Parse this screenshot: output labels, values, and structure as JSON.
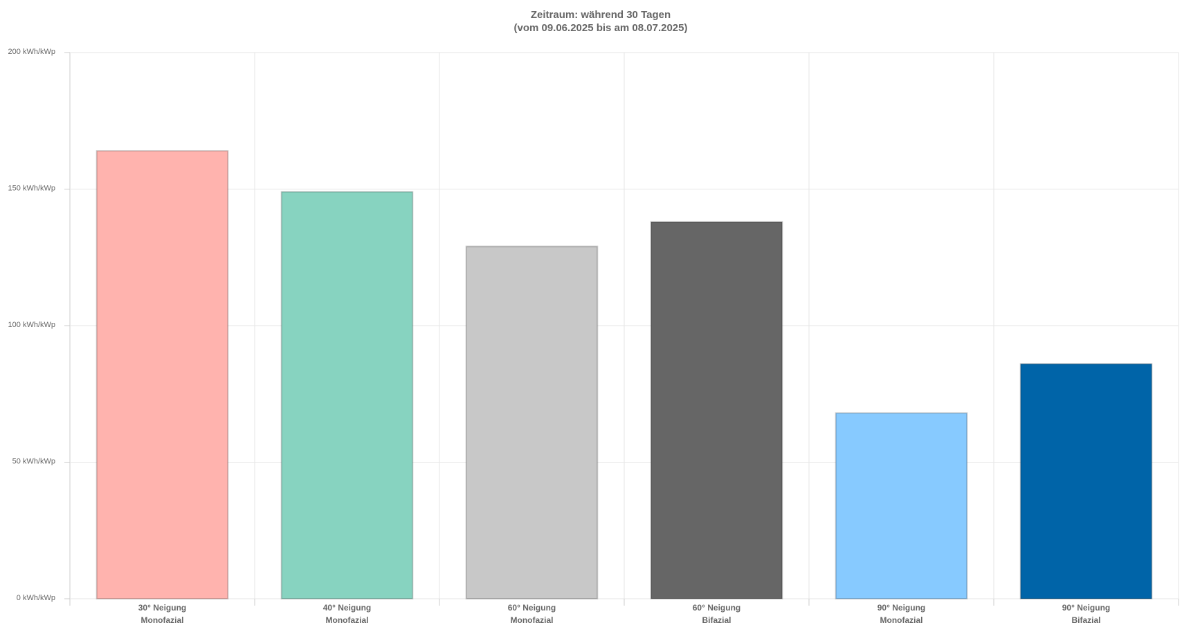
{
  "chart_data": {
    "type": "bar",
    "title": "Zeitraum: während 30 Tagen",
    "subtitle": "(vom 09.06.2025 bis am 08.07.2025)",
    "categories": [
      [
        "30° Neigung",
        "Monofazial"
      ],
      [
        "40° Neigung",
        "Monofazial"
      ],
      [
        "60° Neigung",
        "Monofazial"
      ],
      [
        "60° Neigung",
        "Bifazial"
      ],
      [
        "90° Neigung",
        "Monofazial"
      ],
      [
        "90° Neigung",
        "Bifazial"
      ]
    ],
    "values": [
      164,
      149,
      129,
      138,
      68,
      86
    ],
    "colors": [
      "#ffb3ae",
      "#87d3c0",
      "#c8c8c8",
      "#666666",
      "#87caff",
      "#0064a8"
    ],
    "ylim": [
      0,
      200
    ],
    "yticks": [
      {
        "value": 0,
        "label": "0 kWh/kWp"
      },
      {
        "value": 50,
        "label": "50 kWh/kWp"
      },
      {
        "value": 100,
        "label": "100 kWh/kWp"
      },
      {
        "value": 150,
        "label": "150 kWh/kWp"
      },
      {
        "value": 200,
        "label": "200 kWh/kWp"
      }
    ],
    "grid": true
  }
}
